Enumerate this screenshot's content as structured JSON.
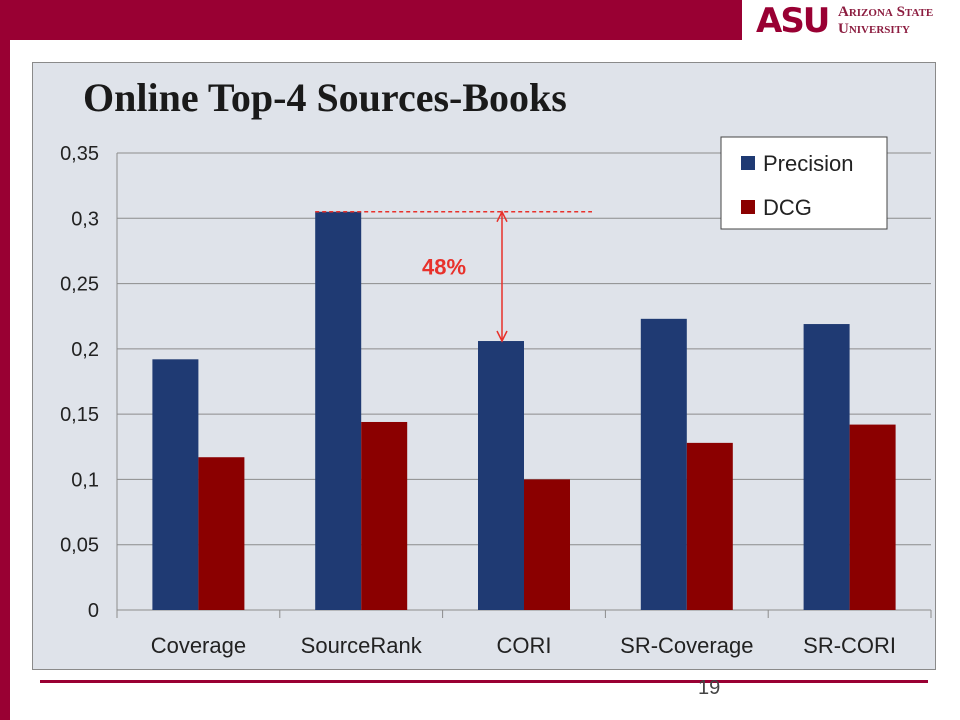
{
  "slide": {
    "logo_asu": "ASU",
    "logo_line1": "Arizona State",
    "logo_line2": "University",
    "page_number": "19",
    "brand_color": "#990033"
  },
  "chart_data": {
    "type": "bar",
    "title": "Online Top-4 Sources-Books",
    "categories": [
      "Coverage",
      "SourceRank",
      "CORI",
      "SR-Coverage",
      "SR-CORI"
    ],
    "series": [
      {
        "name": "Precision",
        "color": "#1f3a73",
        "values": [
          0.192,
          0.305,
          0.206,
          0.223,
          0.219
        ]
      },
      {
        "name": "DCG",
        "color": "#8b0000",
        "values": [
          0.117,
          0.144,
          0.1,
          0.128,
          0.142
        ]
      }
    ],
    "ylim": [
      0,
      0.35
    ],
    "yticks": [
      0,
      0.05,
      0.1,
      0.15,
      0.2,
      0.25,
      0.3,
      0.35
    ],
    "ytick_labels": [
      "0",
      "0,05",
      "0,1",
      "0,15",
      "0,2",
      "0,25",
      "0,3",
      "0,35"
    ],
    "grid": true,
    "legend_position": "top-right",
    "annotation": {
      "label": "48%",
      "color": "#e8312b",
      "from_value": 0.305,
      "to_value": 0.206
    }
  }
}
